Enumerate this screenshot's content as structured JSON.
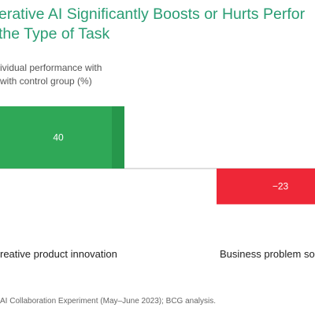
{
  "title": {
    "line1": "erative AI Significantly Boosts or Hurts Perfor",
    "line2": "the Type of Task"
  },
  "source": "AI Collaboration Experiment (May–June 2023); BCG analysis.",
  "colors": {
    "title": "#2a9d74",
    "positive": "#2fa857",
    "positive_edge": "#26974b",
    "negative": "#ee2737",
    "baseline": "#bdbdbd"
  },
  "chart_data": {
    "type": "bar",
    "categories": [
      "reative product innovation",
      "Business problem so"
    ],
    "values": [
      40,
      -23
    ],
    "value_labels": [
      "40",
      "−23"
    ],
    "ylabel": [
      "ividual performance with",
      "with control group (%)"
    ],
    "grid": false,
    "legend": "none"
  }
}
